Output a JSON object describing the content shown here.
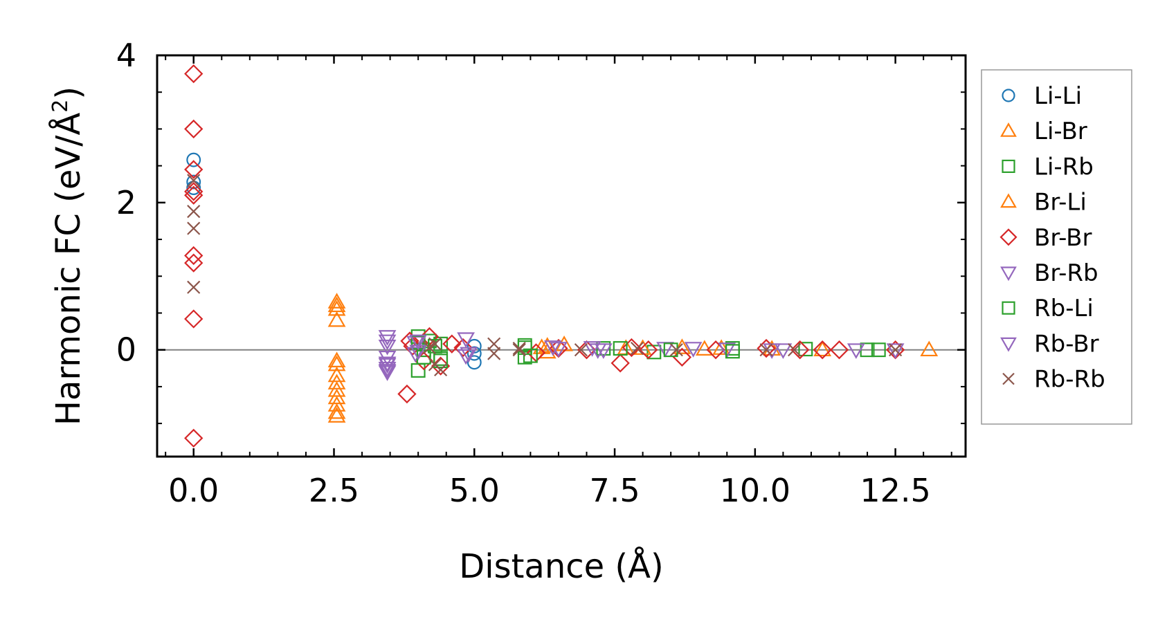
{
  "chart_data": {
    "type": "scatter",
    "title": "",
    "xlabel": "Distance (Å)",
    "ylabel_main": "Harmonic FC (eV/Å",
    "ylabel_sup": "2",
    "ylabel_close": ")",
    "xlim": [
      -0.65,
      13.75
    ],
    "ylim": [
      -1.45,
      4.0
    ],
    "xticks": [
      {
        "value": 0.0,
        "label": "0.0"
      },
      {
        "value": 2.5,
        "label": "2.5"
      },
      {
        "value": 5.0,
        "label": "5.0"
      },
      {
        "value": 7.5,
        "label": "7.5"
      },
      {
        "value": 10.0,
        "label": "10.0"
      },
      {
        "value": 12.5,
        "label": "12.5"
      }
    ],
    "yticks": [
      {
        "value": 0,
        "label": "0"
      },
      {
        "value": 2,
        "label": "2"
      },
      {
        "value": 4,
        "label": "4"
      }
    ],
    "x_minor_step": 0.5,
    "y_minor_step": 0.5,
    "reference_line_y": 0,
    "legend_position": "outside-right",
    "series": [
      {
        "name": "Li-Li",
        "color": "#1f77b4",
        "marker": "circle",
        "x": [
          0,
          0,
          0,
          5.0,
          5.0,
          5.0
        ],
        "y": [
          2.58,
          2.28,
          2.2,
          0.05,
          -0.05,
          -0.17
        ]
      },
      {
        "name": "Li-Br",
        "color": "#ff7f0e",
        "marker": "triangle-up",
        "x": [
          2.55,
          2.55,
          2.55,
          2.55,
          2.55,
          2.55,
          2.55,
          2.55,
          2.55,
          2.55,
          6.2,
          6.6,
          7.7,
          8.7,
          9.4,
          10.3
        ],
        "y": [
          0.65,
          0.55,
          0.4,
          -0.15,
          -0.35,
          -0.45,
          -0.55,
          -0.65,
          -0.75,
          -0.9,
          0.03,
          0.07,
          0.02,
          0.03,
          0.02,
          0.01
        ]
      },
      {
        "name": "Li-Rb",
        "color": "#2ca02c",
        "marker": "square",
        "x": [
          4.0,
          4.0,
          4.1,
          4.2,
          4.4,
          4.4,
          5.9,
          5.9,
          7.3,
          8.2,
          9.6,
          10.9,
          12.0
        ],
        "y": [
          0.18,
          -0.28,
          0.0,
          0.12,
          0.08,
          -0.12,
          0.06,
          -0.1,
          0.02,
          -0.03,
          0.02,
          0.01,
          0.0
        ]
      },
      {
        "name": "Br-Li",
        "color": "#ff7f0e",
        "marker": "triangle-up",
        "x": [
          2.55,
          2.55,
          2.55,
          6.3,
          6.3,
          8.0,
          9.1,
          11.2,
          13.1
        ],
        "y": [
          0.6,
          -0.2,
          -0.85,
          -0.03,
          0.05,
          0.02,
          0.01,
          0.0,
          0.0
        ]
      },
      {
        "name": "Br-Br",
        "color": "#d62728",
        "marker": "diamond",
        "x": [
          0,
          0,
          0,
          0,
          0,
          0,
          0,
          0,
          0,
          3.8,
          3.85,
          3.9,
          4.1,
          4.2,
          4.4,
          4.6,
          4.8,
          6.1,
          6.5,
          7.0,
          7.6,
          7.8,
          8.1,
          8.7,
          9.3,
          10.2,
          10.8,
          11.2,
          11.5,
          12.5
        ],
        "y": [
          3.75,
          3.0,
          2.45,
          2.1,
          1.28,
          1.18,
          0.42,
          -1.2,
          2.15,
          -0.6,
          0.12,
          0.05,
          -0.15,
          0.18,
          -0.22,
          0.08,
          0.03,
          -0.04,
          0.02,
          0.0,
          -0.18,
          0.03,
          0.0,
          -0.1,
          0.0,
          0.02,
          0.0,
          0.0,
          0.0,
          0.0
        ]
      },
      {
        "name": "Br-Rb",
        "color": "#9467bd",
        "marker": "triangle-down",
        "x": [
          3.45,
          3.45,
          3.45,
          3.45,
          3.45,
          3.45,
          3.95,
          3.95,
          4.85,
          4.85,
          6.4,
          7.1,
          7.3,
          8.4,
          9.5,
          10.3,
          11.8,
          12.5
        ],
        "y": [
          0.18,
          0.05,
          -0.1,
          -0.18,
          -0.25,
          -0.3,
          0.1,
          -0.05,
          0.15,
          -0.08,
          0.04,
          0.03,
          0.0,
          0.02,
          0.01,
          0.0,
          0.0,
          0.0
        ]
      },
      {
        "name": "Rb-Li",
        "color": "#2ca02c",
        "marker": "square",
        "x": [
          4.0,
          4.1,
          4.3,
          4.4,
          5.9,
          6.0,
          7.6,
          8.5,
          9.6,
          12.2
        ],
        "y": [
          0.1,
          -0.1,
          0.05,
          -0.15,
          0.03,
          -0.08,
          0.02,
          0.0,
          -0.02,
          0.0
        ]
      },
      {
        "name": "Rb-Br",
        "color": "#9467bd",
        "marker": "triangle-down",
        "x": [
          3.45,
          3.45,
          3.45,
          4.0,
          4.0,
          4.9,
          6.5,
          7.2,
          8.9,
          10.5
        ],
        "y": [
          0.12,
          -0.2,
          -0.28,
          0.12,
          -0.02,
          -0.05,
          0.02,
          0.0,
          0.02,
          0.0
        ]
      },
      {
        "name": "Rb-Rb",
        "color": "#8c564b",
        "marker": "x",
        "x": [
          0,
          0,
          0,
          0,
          4.2,
          4.3,
          4.3,
          4.4,
          5.35,
          5.35,
          5.8,
          5.8,
          6.9,
          7.9,
          8.6,
          10.2,
          10.7,
          12.5
        ],
        "y": [
          1.88,
          1.65,
          0.85,
          2.3,
          0.03,
          0.08,
          -0.2,
          -0.27,
          0.08,
          -0.05,
          0.02,
          0.0,
          0.0,
          0.02,
          0.0,
          0.0,
          0.0,
          0.0
        ]
      }
    ]
  }
}
